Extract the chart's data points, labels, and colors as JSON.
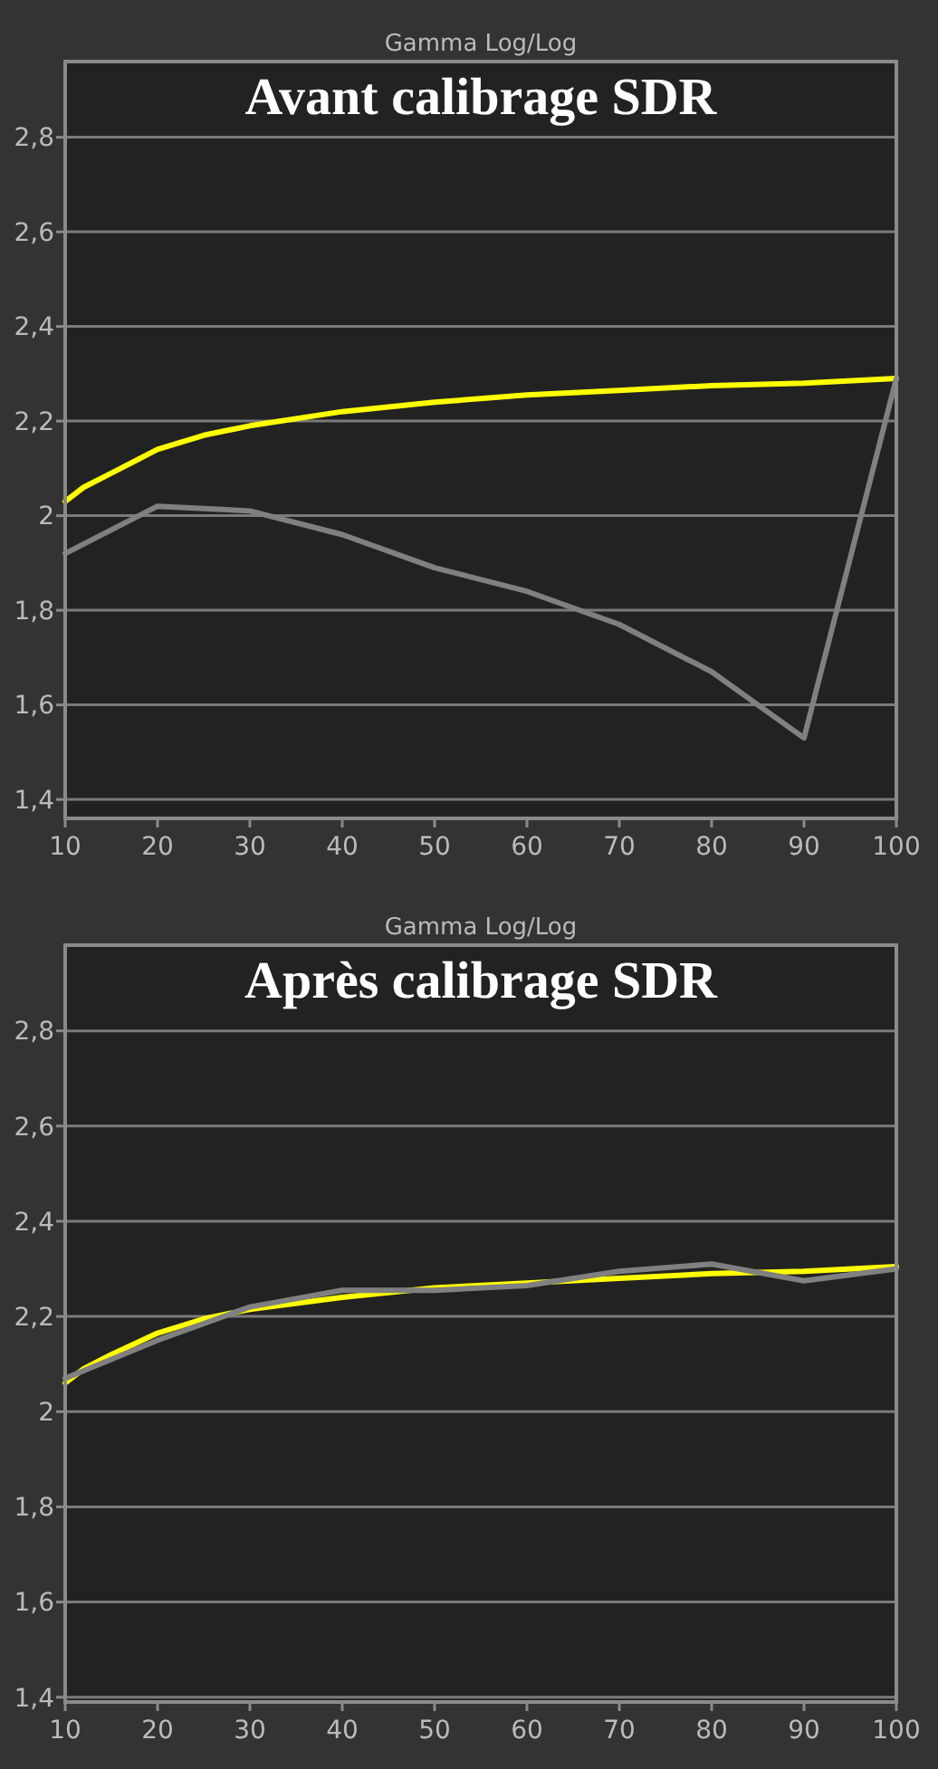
{
  "chart_data": [
    {
      "type": "line",
      "title": "Gamma Log/Log",
      "subtitle": "Avant calibrage SDR",
      "xlim": [
        10,
        100
      ],
      "xticks": [
        10,
        20,
        30,
        40,
        50,
        60,
        70,
        80,
        90,
        100
      ],
      "ylim": [
        1.36,
        2.96
      ],
      "yticks": [
        {
          "value": 1.4,
          "label": "1,4"
        },
        {
          "value": 1.6,
          "label": "1,6"
        },
        {
          "value": 1.8,
          "label": "1,8"
        },
        {
          "value": 2,
          "label": "2"
        },
        {
          "value": 2.2,
          "label": "2,2"
        },
        {
          "value": 2.4,
          "label": "2,4"
        },
        {
          "value": 2.6,
          "label": "2,6"
        },
        {
          "value": 2.8,
          "label": "2,8"
        }
      ],
      "grid": "y",
      "series": [
        {
          "color": "#ffff00",
          "x": [
            10,
            12,
            15,
            20,
            25,
            30,
            40,
            50,
            60,
            70,
            80,
            90,
            100
          ],
          "values": [
            2.03,
            2.06,
            2.09,
            2.14,
            2.17,
            2.19,
            2.22,
            2.24,
            2.255,
            2.265,
            2.275,
            2.28,
            2.29
          ]
        },
        {
          "color": "#808080",
          "x": [
            10,
            20,
            30,
            40,
            50,
            60,
            70,
            80,
            90,
            100
          ],
          "values": [
            1.92,
            2.02,
            2.01,
            1.96,
            1.89,
            1.84,
            1.77,
            1.67,
            1.53,
            2.29
          ]
        }
      ]
    },
    {
      "type": "line",
      "title": "Gamma Log/Log",
      "subtitle": "Après calibrage SDR",
      "xlim": [
        10,
        100
      ],
      "xticks": [
        10,
        20,
        30,
        40,
        50,
        60,
        70,
        80,
        90,
        100
      ],
      "ylim": [
        1.39,
        2.98
      ],
      "yticks": [
        {
          "value": 1.4,
          "label": "1,4"
        },
        {
          "value": 1.6,
          "label": "1,6"
        },
        {
          "value": 1.8,
          "label": "1,8"
        },
        {
          "value": 2,
          "label": "2"
        },
        {
          "value": 2.2,
          "label": "2,2"
        },
        {
          "value": 2.4,
          "label": "2,4"
        },
        {
          "value": 2.6,
          "label": "2,6"
        },
        {
          "value": 2.8,
          "label": "2,8"
        }
      ],
      "grid": "y",
      "series": [
        {
          "color": "#ffff00",
          "x": [
            10,
            12,
            15,
            20,
            25,
            30,
            40,
            50,
            60,
            70,
            80,
            90,
            100
          ],
          "values": [
            2.06,
            2.09,
            2.12,
            2.165,
            2.195,
            2.215,
            2.24,
            2.26,
            2.27,
            2.28,
            2.29,
            2.295,
            2.305
          ]
        },
        {
          "color": "#808080",
          "x": [
            10,
            20,
            30,
            40,
            50,
            60,
            70,
            80,
            90,
            100
          ],
          "values": [
            2.07,
            2.15,
            2.22,
            2.255,
            2.255,
            2.265,
            2.295,
            2.31,
            2.275,
            2.3
          ]
        }
      ]
    }
  ]
}
